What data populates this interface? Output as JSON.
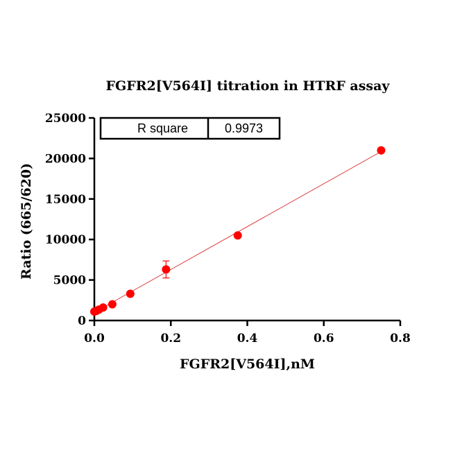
{
  "chart_data": {
    "type": "scatter",
    "title": "FGFR2[V564I] titration in HTRF assay",
    "xlabel": "FGFR2[V564I],nM",
    "ylabel": "Ratio (665/620)",
    "xlim": [
      0,
      0.8
    ],
    "ylim": [
      0,
      25000
    ],
    "x_ticks": [
      "0.0",
      "0.2",
      "0.4",
      "0.6",
      "0.8"
    ],
    "y_ticks": [
      "0",
      "5000",
      "10000",
      "15000",
      "20000",
      "25000"
    ],
    "grid": false,
    "points": [
      {
        "x": 0.0,
        "y": 1100
      },
      {
        "x": 0.006,
        "y": 1200
      },
      {
        "x": 0.012,
        "y": 1350
      },
      {
        "x": 0.023,
        "y": 1600
      },
      {
        "x": 0.047,
        "y": 2000
      },
      {
        "x": 0.094,
        "y": 3300
      },
      {
        "x": 0.1875,
        "y": 6300,
        "error": 1050
      },
      {
        "x": 0.375,
        "y": 10500
      },
      {
        "x": 0.75,
        "y": 21000
      }
    ],
    "fit_line": {
      "x": [
        0.0,
        0.75
      ],
      "y": [
        1000,
        20850
      ]
    },
    "marker_color": "#ff0000",
    "line_color": "#e04040",
    "stats_table": {
      "label": "R square",
      "value": "0.9973"
    }
  }
}
